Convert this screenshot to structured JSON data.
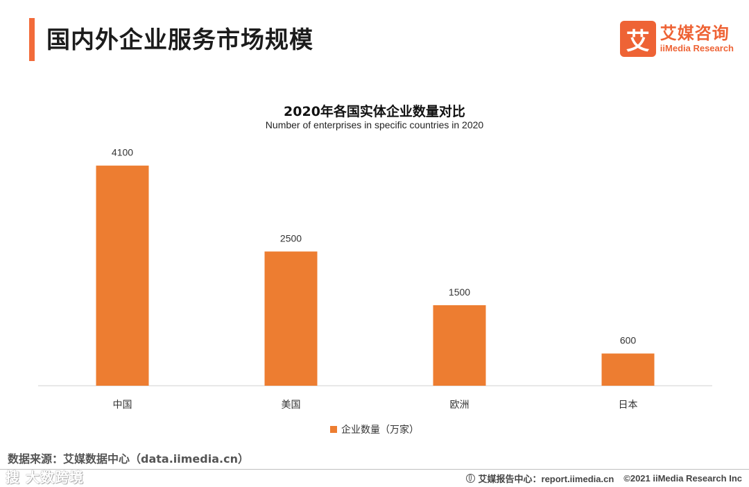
{
  "page": {
    "title": "国内外企业服务市场规模"
  },
  "brand": {
    "logo_char": "艾",
    "name_cn": "艾媒咨询",
    "name_en": "iiMedia Research",
    "accent_color": "#ee6335"
  },
  "chart_data": {
    "type": "bar",
    "title": "2020年各国实体企业数量对比",
    "subtitle": "Number of enterprises in specific countries in 2020",
    "categories": [
      "中国",
      "美国",
      "欧洲",
      "日本"
    ],
    "series": [
      {
        "name": "企业数量（万家）",
        "values": [
          4100,
          2500,
          1500,
          600
        ],
        "color": "#ed7d31"
      }
    ],
    "data_labels": true,
    "ylim": [
      0,
      4600
    ],
    "grid": false,
    "legend_position": "bottom"
  },
  "footer": {
    "source": "数据来源：艾媒数据中心（data.iimedia.cn）",
    "watermark": "搜 大数跨境",
    "report_site": "艾媒报告中心：report.iimedia.cn",
    "copyright": "©2021  iiMedia Research  Inc"
  }
}
